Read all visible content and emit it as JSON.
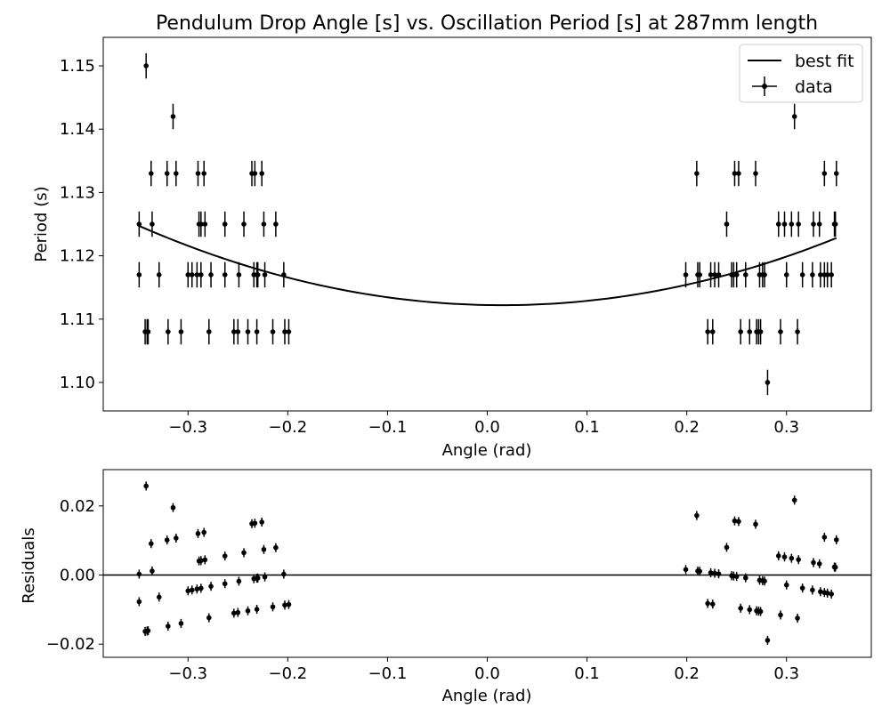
{
  "chart_data": [
    {
      "type": "scatter",
      "title": "Pendulum Drop Angle [s] vs. Oscillation Period [s] at 287mm length",
      "xlabel": "Angle (rad)",
      "ylabel": "Period (s)",
      "xlim": [
        -0.385,
        0.385
      ],
      "ylim": [
        1.0955,
        1.1545
      ],
      "xticks": [
        -0.3,
        -0.2,
        -0.1,
        0.0,
        0.1,
        0.2,
        0.3
      ],
      "xtick_labels": [
        "−0.3",
        "−0.2",
        "−0.1",
        "0.0",
        "0.1",
        "0.2",
        "0.3"
      ],
      "yticks": [
        1.1,
        1.11,
        1.12,
        1.13,
        1.14,
        1.15
      ],
      "ytick_labels": [
        "1.10",
        "1.11",
        "1.12",
        "1.13",
        "1.14",
        "1.15"
      ],
      "yerr": 0.002,
      "grid": false,
      "legend": {
        "placement": "top-right",
        "entries": [
          "best fit",
          "data"
        ]
      },
      "series": [
        {
          "name": "data",
          "points": [
            [
              -0.342,
              1.15
            ],
            [
              -0.315,
              1.142
            ],
            [
              0.308,
              1.142
            ],
            [
              -0.337,
              1.133
            ],
            [
              -0.321,
              1.133
            ],
            [
              -0.312,
              1.133
            ],
            [
              -0.29,
              1.133
            ],
            [
              -0.284,
              1.133
            ],
            [
              -0.236,
              1.133
            ],
            [
              -0.233,
              1.133
            ],
            [
              -0.226,
              1.133
            ],
            [
              0.21,
              1.133
            ],
            [
              0.248,
              1.133
            ],
            [
              0.252,
              1.133
            ],
            [
              0.269,
              1.133
            ],
            [
              0.338,
              1.133
            ],
            [
              0.35,
              1.133
            ],
            [
              -0.349,
              1.125
            ],
            [
              -0.336,
              1.125
            ],
            [
              -0.289,
              1.125
            ],
            [
              -0.287,
              1.125
            ],
            [
              -0.283,
              1.125
            ],
            [
              -0.263,
              1.125
            ],
            [
              -0.244,
              1.125
            ],
            [
              -0.224,
              1.125
            ],
            [
              -0.212,
              1.125
            ],
            [
              0.24,
              1.125
            ],
            [
              0.292,
              1.125
            ],
            [
              0.298,
              1.125
            ],
            [
              0.305,
              1.125
            ],
            [
              0.312,
              1.125
            ],
            [
              0.327,
              1.125
            ],
            [
              0.333,
              1.125
            ],
            [
              0.348,
              1.125
            ],
            [
              0.349,
              1.125
            ],
            [
              -0.349,
              1.117
            ],
            [
              -0.329,
              1.117
            ],
            [
              -0.3,
              1.117
            ],
            [
              -0.296,
              1.117
            ],
            [
              -0.291,
              1.117
            ],
            [
              -0.287,
              1.117
            ],
            [
              -0.277,
              1.117
            ],
            [
              -0.263,
              1.117
            ],
            [
              -0.249,
              1.117
            ],
            [
              -0.234,
              1.117
            ],
            [
              -0.231,
              1.117
            ],
            [
              -0.23,
              1.117
            ],
            [
              -0.223,
              1.117
            ],
            [
              -0.204,
              1.117
            ],
            [
              0.199,
              1.117
            ],
            [
              0.211,
              1.117
            ],
            [
              0.213,
              1.117
            ],
            [
              0.224,
              1.117
            ],
            [
              0.228,
              1.117
            ],
            [
              0.232,
              1.117
            ],
            [
              0.245,
              1.117
            ],
            [
              0.247,
              1.117
            ],
            [
              0.25,
              1.117
            ],
            [
              0.259,
              1.117
            ],
            [
              0.273,
              1.117
            ],
            [
              0.276,
              1.117
            ],
            [
              0.278,
              1.117
            ],
            [
              0.3,
              1.117
            ],
            [
              0.316,
              1.117
            ],
            [
              0.326,
              1.117
            ],
            [
              0.334,
              1.117
            ],
            [
              0.338,
              1.117
            ],
            [
              0.341,
              1.117
            ],
            [
              0.345,
              1.117
            ],
            [
              -0.343,
              1.108
            ],
            [
              -0.341,
              1.108
            ],
            [
              -0.34,
              1.108
            ],
            [
              -0.32,
              1.108
            ],
            [
              -0.307,
              1.108
            ],
            [
              -0.279,
              1.108
            ],
            [
              -0.254,
              1.108
            ],
            [
              -0.25,
              1.108
            ],
            [
              -0.24,
              1.108
            ],
            [
              -0.231,
              1.108
            ],
            [
              -0.215,
              1.108
            ],
            [
              -0.203,
              1.108
            ],
            [
              -0.199,
              1.108
            ],
            [
              0.221,
              1.108
            ],
            [
              0.226,
              1.108
            ],
            [
              0.254,
              1.108
            ],
            [
              0.263,
              1.108
            ],
            [
              0.27,
              1.108
            ],
            [
              0.272,
              1.108
            ],
            [
              0.274,
              1.108
            ],
            [
              0.294,
              1.108
            ],
            [
              0.311,
              1.108
            ],
            [
              0.281,
              1.1
            ]
          ]
        },
        {
          "name": "best fit",
          "model": "quadratic",
          "x_range": [
            -0.35,
            0.35
          ],
          "vertex_x": 0.015,
          "vertex_y": 1.1122,
          "curvature": 0.0945
        }
      ]
    },
    {
      "type": "scatter",
      "title": "",
      "xlabel": "Angle (rad)",
      "ylabel": "Residuals",
      "xlim": [
        -0.385,
        0.385
      ],
      "ylim": [
        -0.0238,
        0.0305
      ],
      "xticks": [
        -0.3,
        -0.2,
        -0.1,
        0.0,
        0.1,
        0.2,
        0.3
      ],
      "xtick_labels": [
        "−0.3",
        "−0.2",
        "−0.1",
        "0.0",
        "0.1",
        "0.2",
        "0.3"
      ],
      "yticks": [
        -0.02,
        0.0,
        0.02
      ],
      "ytick_labels": [
        "−0.02",
        "0.00",
        "0.02"
      ],
      "yerr": 0.0013,
      "zero_line": 0.0,
      "grid": false
    }
  ]
}
